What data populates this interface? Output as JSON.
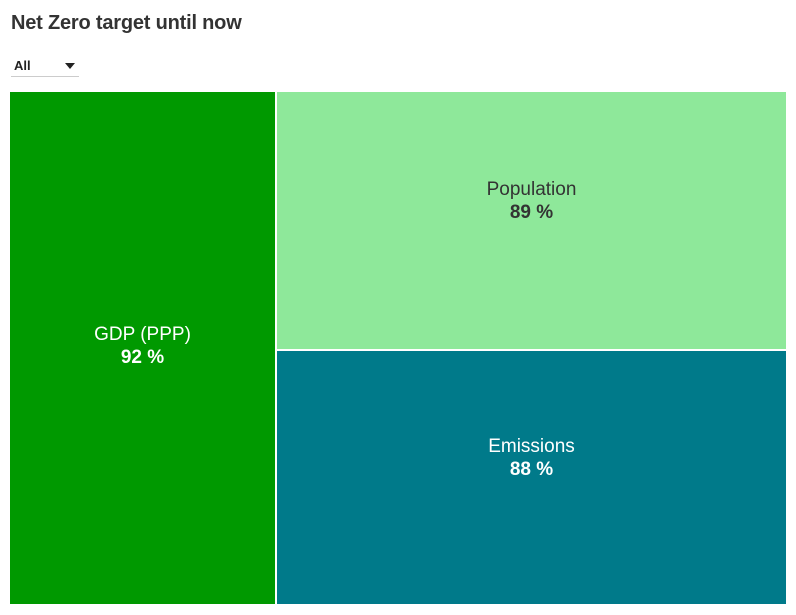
{
  "title": "Net Zero target until now",
  "filter": {
    "selected": "All"
  },
  "chart_data": {
    "type": "treemap",
    "title": "Net Zero target until now",
    "unit": "%",
    "categories": [
      "GDP (PPP)",
      "Population",
      "Emissions"
    ],
    "values": [
      92,
      89,
      88
    ],
    "value_labels": [
      "92 %",
      "89 %",
      "88 %"
    ],
    "colors": [
      "#009900",
      "#8ee89a",
      "#007a8a"
    ],
    "text_colors": [
      "#ffffff",
      "#333333",
      "#ffffff"
    ]
  }
}
